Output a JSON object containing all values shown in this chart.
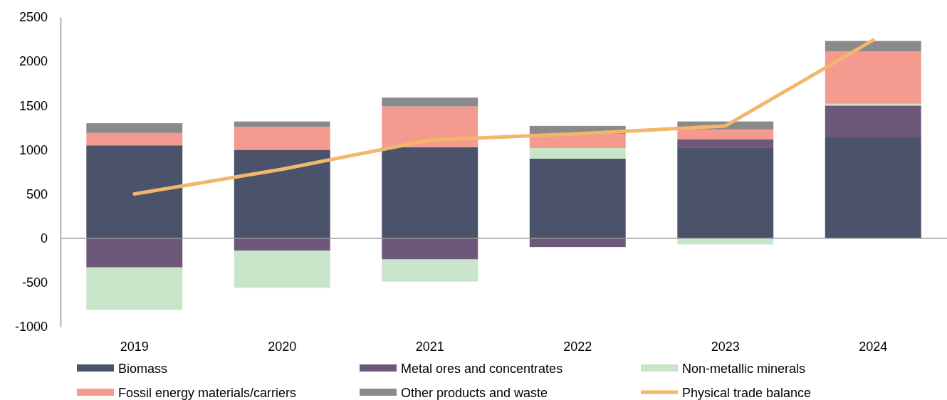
{
  "chart_data": {
    "type": "bar",
    "stacked": true,
    "categories": [
      "2019",
      "2020",
      "2021",
      "2022",
      "2023",
      "2024"
    ],
    "series": [
      {
        "name": "Biomass",
        "color": "#4b536b",
        "values": [
          1050,
          1000,
          1030,
          900,
          1020,
          1140
        ]
      },
      {
        "name": "Metal ores and concentrates",
        "color": "#6e587a",
        "values": [
          -330,
          -140,
          -240,
          -100,
          100,
          360
        ]
      },
      {
        "name": "Non-metallic minerals",
        "color": "#c9e5c9",
        "values": [
          -480,
          -420,
          -250,
          120,
          -70,
          20
        ]
      },
      {
        "name": "Fossil energy materials/carriers",
        "color": "#f59a8e",
        "values": [
          140,
          260,
          460,
          160,
          110,
          590
        ]
      },
      {
        "name": "Other products and waste",
        "color": "#8a8a8a",
        "values": [
          110,
          60,
          100,
          90,
          90,
          120
        ]
      },
      {
        "name": "Physical trade balance",
        "type": "line",
        "color": "#f2b76b",
        "values": [
          500,
          780,
          1110,
          1180,
          1270,
          2240
        ]
      }
    ],
    "ylim": [
      -1000,
      2500
    ],
    "yticks": [
      -1000,
      -500,
      0,
      500,
      1000,
      1500,
      2000,
      2500
    ],
    "legend": "bottom",
    "marker": "none",
    "line_style": "solid"
  }
}
